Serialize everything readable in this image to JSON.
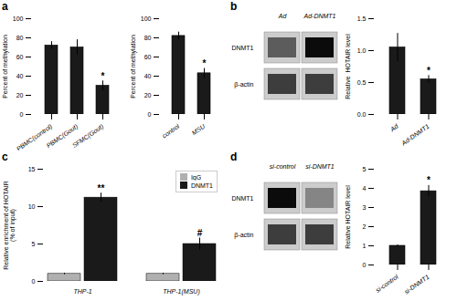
{
  "chart_data": [
    {
      "type": "bar",
      "title": "a",
      "categories": [
        "PBMC(control)",
        "PBMC(Gout)",
        "SFMC(Gout)"
      ],
      "values": [
        72,
        70,
        30
      ],
      "errors": [
        4,
        8,
        5
      ],
      "color": "#1a1a1a",
      "ylabel": "Percent of methylation",
      "ylim": [
        0,
        100
      ],
      "yticks": [
        0,
        20,
        40,
        60,
        80,
        100
      ],
      "annotations": [
        {
          "category": "SFMC(Gout)",
          "text": "*"
        }
      ],
      "grid": false
    },
    {
      "type": "bar",
      "categories": [
        "control",
        "MSU"
      ],
      "values": [
        82,
        43
      ],
      "errors": [
        4,
        5
      ],
      "color": "#1a1a1a",
      "ylabel": "Percent of methylation",
      "ylim": [
        0,
        100
      ],
      "yticks": [
        0,
        20,
        40,
        60,
        80,
        100
      ],
      "annotations": [
        {
          "category": "MSU",
          "text": "*"
        }
      ],
      "grid": false
    },
    {
      "type": "heatmap",
      "title": "b",
      "x": [
        "Ad",
        "Ad-DNMT1"
      ],
      "y": [
        "DNMT1",
        "β-actin"
      ],
      "cells": [
        [
          0.55,
          0.95
        ],
        [
          0.7,
          0.7
        ]
      ]
    },
    {
      "type": "bar",
      "categories": [
        "Ad",
        "Ad-DNMT1"
      ],
      "values": [
        1.05,
        0.55
      ],
      "errors": [
        0.22,
        0.06
      ],
      "color": "#1a1a1a",
      "ylabel": "Relative  HOTAIR level",
      "ylim": [
        0,
        1.5
      ],
      "yticks": [
        {
          "value": 0,
          "label": "0.0"
        },
        0.5,
        {
          "value": 1,
          "label": "1.0"
        },
        1.5
      ],
      "annotations": [
        {
          "category": "Ad-DNMT1",
          "text": "*"
        }
      ],
      "grid": false
    },
    {
      "type": "bar",
      "title": "c",
      "categories": [
        "THP-1",
        "THP-1(MSU)"
      ],
      "series": [
        {
          "name": "IgG",
          "color": "#b0b0b0",
          "values": [
            1,
            1
          ],
          "errors": [
            0.1,
            0.1
          ]
        },
        {
          "name": "DNMT1",
          "color": "#1a1a1a",
          "values": [
            11.2,
            5.0
          ],
          "errors": [
            0.6,
            0.8
          ]
        }
      ],
      "ylabel": "Relative enrichment of HOTAIR\n(% of input)",
      "ylim": [
        0,
        15
      ],
      "yticks": [
        0,
        5,
        10,
        15
      ],
      "legend": "upper right",
      "annotations": [
        {
          "category": "THP-1",
          "series": "DNMT1",
          "text": "**"
        },
        {
          "category": "THP-1(MSU)",
          "series": "DNMT1",
          "text": "#"
        }
      ],
      "grid": false
    },
    {
      "type": "heatmap",
      "title": "d",
      "x": [
        "si-control",
        "si-DNMT1"
      ],
      "y": [
        "DNMT1",
        "β-actin"
      ],
      "cells": [
        [
          0.95,
          0.35
        ],
        [
          0.7,
          0.7
        ]
      ]
    },
    {
      "type": "bar",
      "categories": [
        "si-control",
        "si-DNMT1"
      ],
      "values": [
        1.0,
        3.85
      ],
      "errors": [
        0.05,
        0.3
      ],
      "color": "#1a1a1a",
      "ylabel": "Relative HOTAIR level",
      "ylim": [
        0,
        5
      ],
      "yticks": [
        0,
        1,
        2,
        3,
        4,
        5
      ],
      "annotations": [
        {
          "category": "si-DNMT1",
          "text": "*"
        }
      ],
      "grid": false
    }
  ]
}
